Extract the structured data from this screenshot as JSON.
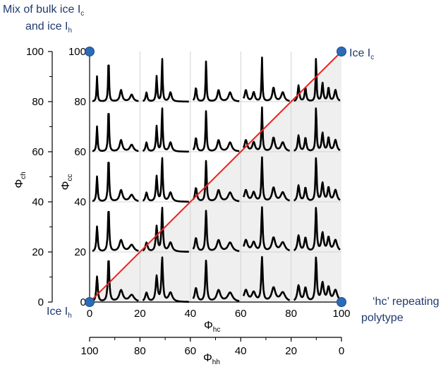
{
  "chart_data": {
    "type": "line",
    "description": "Stacked diffraction patterns for stacking-disordered ice on a Φhc–Φcc grid",
    "corner_labels": {
      "top_left": {
        "line1": "Mix of bulk ice I",
        "line1_sub": "c",
        "line2": "and ice I",
        "line2_sub": "h"
      },
      "top_right": {
        "text": "Ice I",
        "sub": "c"
      },
      "bottom_left": {
        "text": "Ice I",
        "sub": "h"
      },
      "bottom_right": {
        "line1": "‘hc’ repeating",
        "line2": "polytype"
      }
    },
    "x_axis": {
      "label": "Φ",
      "label_sub": "hc",
      "ticks": [
        "0",
        "20",
        "40",
        "60",
        "80",
        "100"
      ],
      "range": [
        0,
        100
      ]
    },
    "x2_axis": {
      "label": "Φ",
      "label_sub": "hh",
      "ticks": [
        "100",
        "80",
        "60",
        "40",
        "20",
        "0"
      ],
      "range": [
        100,
        0
      ]
    },
    "y_inner_axis": {
      "label": "Φ",
      "label_sub": "cc",
      "ticks": [
        "0",
        "20",
        "40",
        "60",
        "80",
        "100"
      ],
      "range": [
        0,
        100
      ]
    },
    "y_outer_axis": {
      "label": "Φ",
      "label_sub": "ch",
      "ticks": [
        "100",
        "80",
        "60",
        "40",
        "20",
        "0"
      ],
      "range": [
        100,
        0
      ]
    },
    "diagonal": {
      "from": [
        0,
        0
      ],
      "to": [
        100,
        100
      ],
      "color": "#e8271b"
    },
    "corner_points": [
      [
        0,
        100
      ],
      [
        100,
        100
      ],
      [
        0,
        0
      ],
      [
        100,
        0
      ]
    ],
    "rows": [
      {
        "phi_cc": 80,
        "columns": [
          0,
          20,
          40,
          60,
          80
        ]
      },
      {
        "phi_cc": 60,
        "columns": [
          0,
          20,
          40,
          60,
          80
        ]
      },
      {
        "phi_cc": 40,
        "columns": [
          0,
          20,
          40,
          60,
          80
        ]
      },
      {
        "phi_cc": 20,
        "columns": [
          0,
          20,
          40,
          60,
          80
        ]
      },
      {
        "phi_cc": 0,
        "columns": [
          0,
          20,
          40,
          60,
          80
        ]
      }
    ],
    "grid": true,
    "colors": {
      "text": "#1f3a6e",
      "marker": "#2b6bb8",
      "shade": "#efefef",
      "curve": "#000000",
      "grid": "#d3d3d3"
    }
  }
}
